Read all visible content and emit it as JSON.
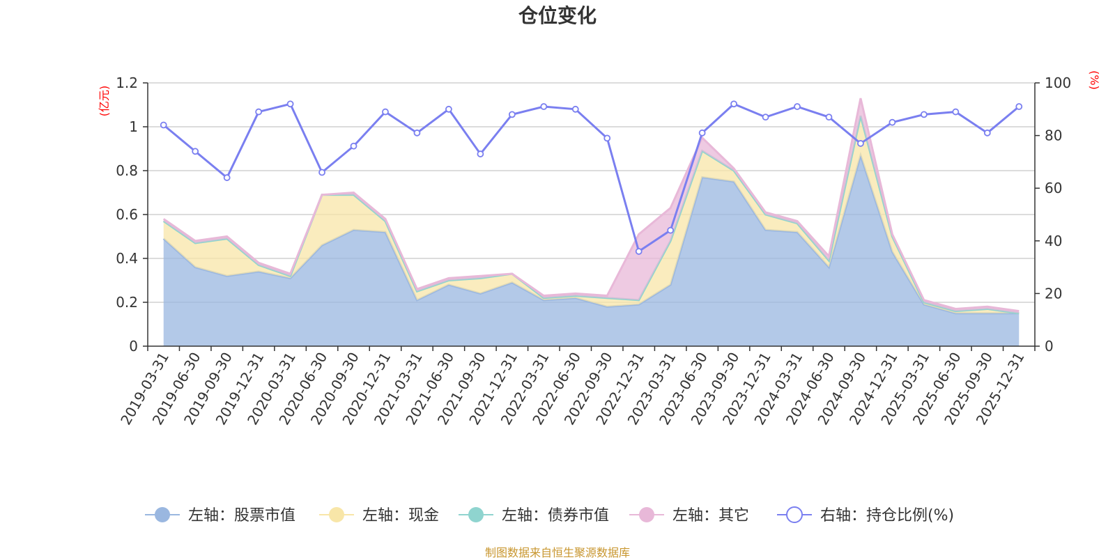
{
  "chart_data": {
    "type": "area+line",
    "title": "仓位变化",
    "left_unit": "(亿元)",
    "right_unit": "(%)",
    "left_ylim": [
      0,
      1.2
    ],
    "left_ticks": [
      "0",
      "0.2",
      "0.4",
      "0.6",
      "0.8",
      "1",
      "1.2"
    ],
    "right_ylim": [
      0,
      100
    ],
    "right_ticks": [
      "0",
      "20",
      "40",
      "60",
      "80",
      "100"
    ],
    "categories": [
      "2019-03-31",
      "2019-06-30",
      "2019-09-30",
      "2019-12-31",
      "2020-03-31",
      "2020-06-30",
      "2020-09-30",
      "2020-12-31",
      "2021-03-31",
      "2021-06-30",
      "2021-09-30",
      "2021-12-31",
      "2022-03-31",
      "2022-06-30",
      "2022-09-30",
      "2022-12-31",
      "2023-03-31",
      "2023-06-30",
      "2023-09-30",
      "2023-12-31",
      "2024-03-31",
      "2024-06-30",
      "2024-09-30",
      "2024-12-31",
      "2025-03-31",
      "2025-06-30",
      "2025-09-30",
      "2025-12-31"
    ],
    "series": [
      {
        "name": "左轴：股票市值",
        "axis": "left",
        "kind": "area",
        "color": "#9ab7e0",
        "values": [
          0.49,
          0.36,
          0.32,
          0.34,
          0.31,
          0.46,
          0.53,
          0.52,
          0.21,
          0.28,
          0.24,
          0.29,
          0.21,
          0.22,
          0.18,
          0.19,
          0.28,
          0.77,
          0.75,
          0.53,
          0.52,
          0.36,
          0.87,
          0.43,
          0.19,
          0.15,
          0.15,
          0.15
        ]
      },
      {
        "name": "左轴：现金",
        "axis": "left",
        "kind": "area",
        "color": "#f8e6a8",
        "values": [
          0.08,
          0.11,
          0.17,
          0.03,
          0.01,
          0.23,
          0.16,
          0.05,
          0.04,
          0.02,
          0.07,
          0.04,
          0.01,
          0.01,
          0.04,
          0.02,
          0.2,
          0.12,
          0.05,
          0.07,
          0.04,
          0.03,
          0.18,
          0.07,
          0.01,
          0.01,
          0.02,
          0.0
        ]
      },
      {
        "name": "左轴：债券市值",
        "axis": "left",
        "kind": "area",
        "color": "#8fd4cf",
        "values": [
          0,
          0,
          0,
          0,
          0,
          0,
          0,
          0,
          0,
          0,
          0,
          0,
          0,
          0,
          0,
          0,
          0,
          0,
          0,
          0,
          0,
          0,
          0,
          0,
          0,
          0,
          0,
          0
        ]
      },
      {
        "name": "左轴：其它",
        "axis": "left",
        "kind": "area",
        "color": "#e8b8d8",
        "values": [
          0.01,
          0.01,
          0.01,
          0.01,
          0.01,
          0.0,
          0.01,
          0.01,
          0.01,
          0.01,
          0.01,
          0.0,
          0.01,
          0.01,
          0.01,
          0.3,
          0.15,
          0.06,
          0.01,
          0.01,
          0.01,
          0.02,
          0.08,
          0.01,
          0.01,
          0.01,
          0.01,
          0.01
        ]
      },
      {
        "name": "右轴：持仓比例(%)",
        "axis": "right",
        "kind": "line",
        "color": "#7a7ff0",
        "values": [
          84,
          74,
          64,
          89,
          92,
          66,
          76,
          89,
          81,
          90,
          73,
          88,
          91,
          90,
          79,
          36,
          44,
          81,
          92,
          87,
          91,
          87,
          77,
          85,
          88,
          89,
          81,
          91
        ]
      }
    ],
    "source": "制图数据来自恒生聚源数据库"
  }
}
